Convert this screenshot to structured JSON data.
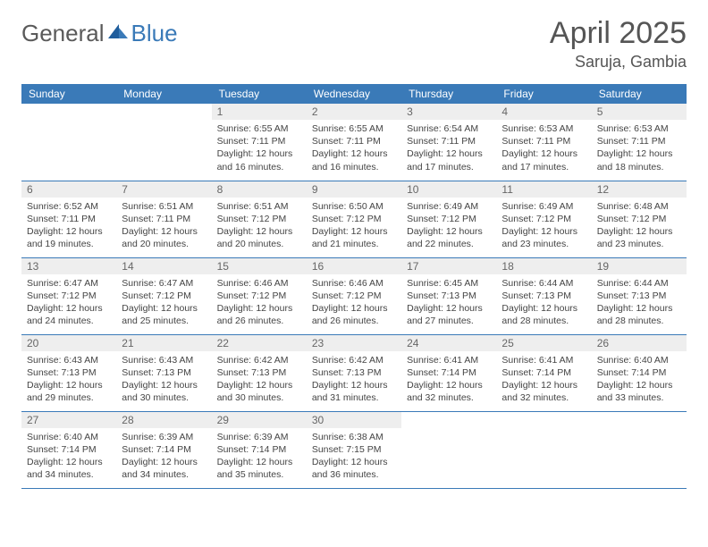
{
  "brand": {
    "part1": "General",
    "part2": "Blue"
  },
  "title": "April 2025",
  "location": "Saruja, Gambia",
  "colors": {
    "header_bg": "#3a7ab8",
    "header_text": "#ffffff",
    "daynum_bg": "#eeeeee",
    "border": "#3a7ab8",
    "text": "#444444",
    "brand_gray": "#5a5a5a",
    "brand_blue": "#3a7ab8"
  },
  "dayNames": [
    "Sunday",
    "Monday",
    "Tuesday",
    "Wednesday",
    "Thursday",
    "Friday",
    "Saturday"
  ],
  "layout": {
    "startCol": 2,
    "numDays": 30,
    "numRows": 5
  },
  "days": {
    "1": {
      "sunrise": "6:55 AM",
      "sunset": "7:11 PM",
      "daylight": "12 hours and 16 minutes."
    },
    "2": {
      "sunrise": "6:55 AM",
      "sunset": "7:11 PM",
      "daylight": "12 hours and 16 minutes."
    },
    "3": {
      "sunrise": "6:54 AM",
      "sunset": "7:11 PM",
      "daylight": "12 hours and 17 minutes."
    },
    "4": {
      "sunrise": "6:53 AM",
      "sunset": "7:11 PM",
      "daylight": "12 hours and 17 minutes."
    },
    "5": {
      "sunrise": "6:53 AM",
      "sunset": "7:11 PM",
      "daylight": "12 hours and 18 minutes."
    },
    "6": {
      "sunrise": "6:52 AM",
      "sunset": "7:11 PM",
      "daylight": "12 hours and 19 minutes."
    },
    "7": {
      "sunrise": "6:51 AM",
      "sunset": "7:11 PM",
      "daylight": "12 hours and 20 minutes."
    },
    "8": {
      "sunrise": "6:51 AM",
      "sunset": "7:12 PM",
      "daylight": "12 hours and 20 minutes."
    },
    "9": {
      "sunrise": "6:50 AM",
      "sunset": "7:12 PM",
      "daylight": "12 hours and 21 minutes."
    },
    "10": {
      "sunrise": "6:49 AM",
      "sunset": "7:12 PM",
      "daylight": "12 hours and 22 minutes."
    },
    "11": {
      "sunrise": "6:49 AM",
      "sunset": "7:12 PM",
      "daylight": "12 hours and 23 minutes."
    },
    "12": {
      "sunrise": "6:48 AM",
      "sunset": "7:12 PM",
      "daylight": "12 hours and 23 minutes."
    },
    "13": {
      "sunrise": "6:47 AM",
      "sunset": "7:12 PM",
      "daylight": "12 hours and 24 minutes."
    },
    "14": {
      "sunrise": "6:47 AM",
      "sunset": "7:12 PM",
      "daylight": "12 hours and 25 minutes."
    },
    "15": {
      "sunrise": "6:46 AM",
      "sunset": "7:12 PM",
      "daylight": "12 hours and 26 minutes."
    },
    "16": {
      "sunrise": "6:46 AM",
      "sunset": "7:12 PM",
      "daylight": "12 hours and 26 minutes."
    },
    "17": {
      "sunrise": "6:45 AM",
      "sunset": "7:13 PM",
      "daylight": "12 hours and 27 minutes."
    },
    "18": {
      "sunrise": "6:44 AM",
      "sunset": "7:13 PM",
      "daylight": "12 hours and 28 minutes."
    },
    "19": {
      "sunrise": "6:44 AM",
      "sunset": "7:13 PM",
      "daylight": "12 hours and 28 minutes."
    },
    "20": {
      "sunrise": "6:43 AM",
      "sunset": "7:13 PM",
      "daylight": "12 hours and 29 minutes."
    },
    "21": {
      "sunrise": "6:43 AM",
      "sunset": "7:13 PM",
      "daylight": "12 hours and 30 minutes."
    },
    "22": {
      "sunrise": "6:42 AM",
      "sunset": "7:13 PM",
      "daylight": "12 hours and 30 minutes."
    },
    "23": {
      "sunrise": "6:42 AM",
      "sunset": "7:13 PM",
      "daylight": "12 hours and 31 minutes."
    },
    "24": {
      "sunrise": "6:41 AM",
      "sunset": "7:14 PM",
      "daylight": "12 hours and 32 minutes."
    },
    "25": {
      "sunrise": "6:41 AM",
      "sunset": "7:14 PM",
      "daylight": "12 hours and 32 minutes."
    },
    "26": {
      "sunrise": "6:40 AM",
      "sunset": "7:14 PM",
      "daylight": "12 hours and 33 minutes."
    },
    "27": {
      "sunrise": "6:40 AM",
      "sunset": "7:14 PM",
      "daylight": "12 hours and 34 minutes."
    },
    "28": {
      "sunrise": "6:39 AM",
      "sunset": "7:14 PM",
      "daylight": "12 hours and 34 minutes."
    },
    "29": {
      "sunrise": "6:39 AM",
      "sunset": "7:14 PM",
      "daylight": "12 hours and 35 minutes."
    },
    "30": {
      "sunrise": "6:38 AM",
      "sunset": "7:15 PM",
      "daylight": "12 hours and 36 minutes."
    }
  },
  "labels": {
    "sunrise": "Sunrise:",
    "sunset": "Sunset:",
    "daylight": "Daylight:"
  }
}
